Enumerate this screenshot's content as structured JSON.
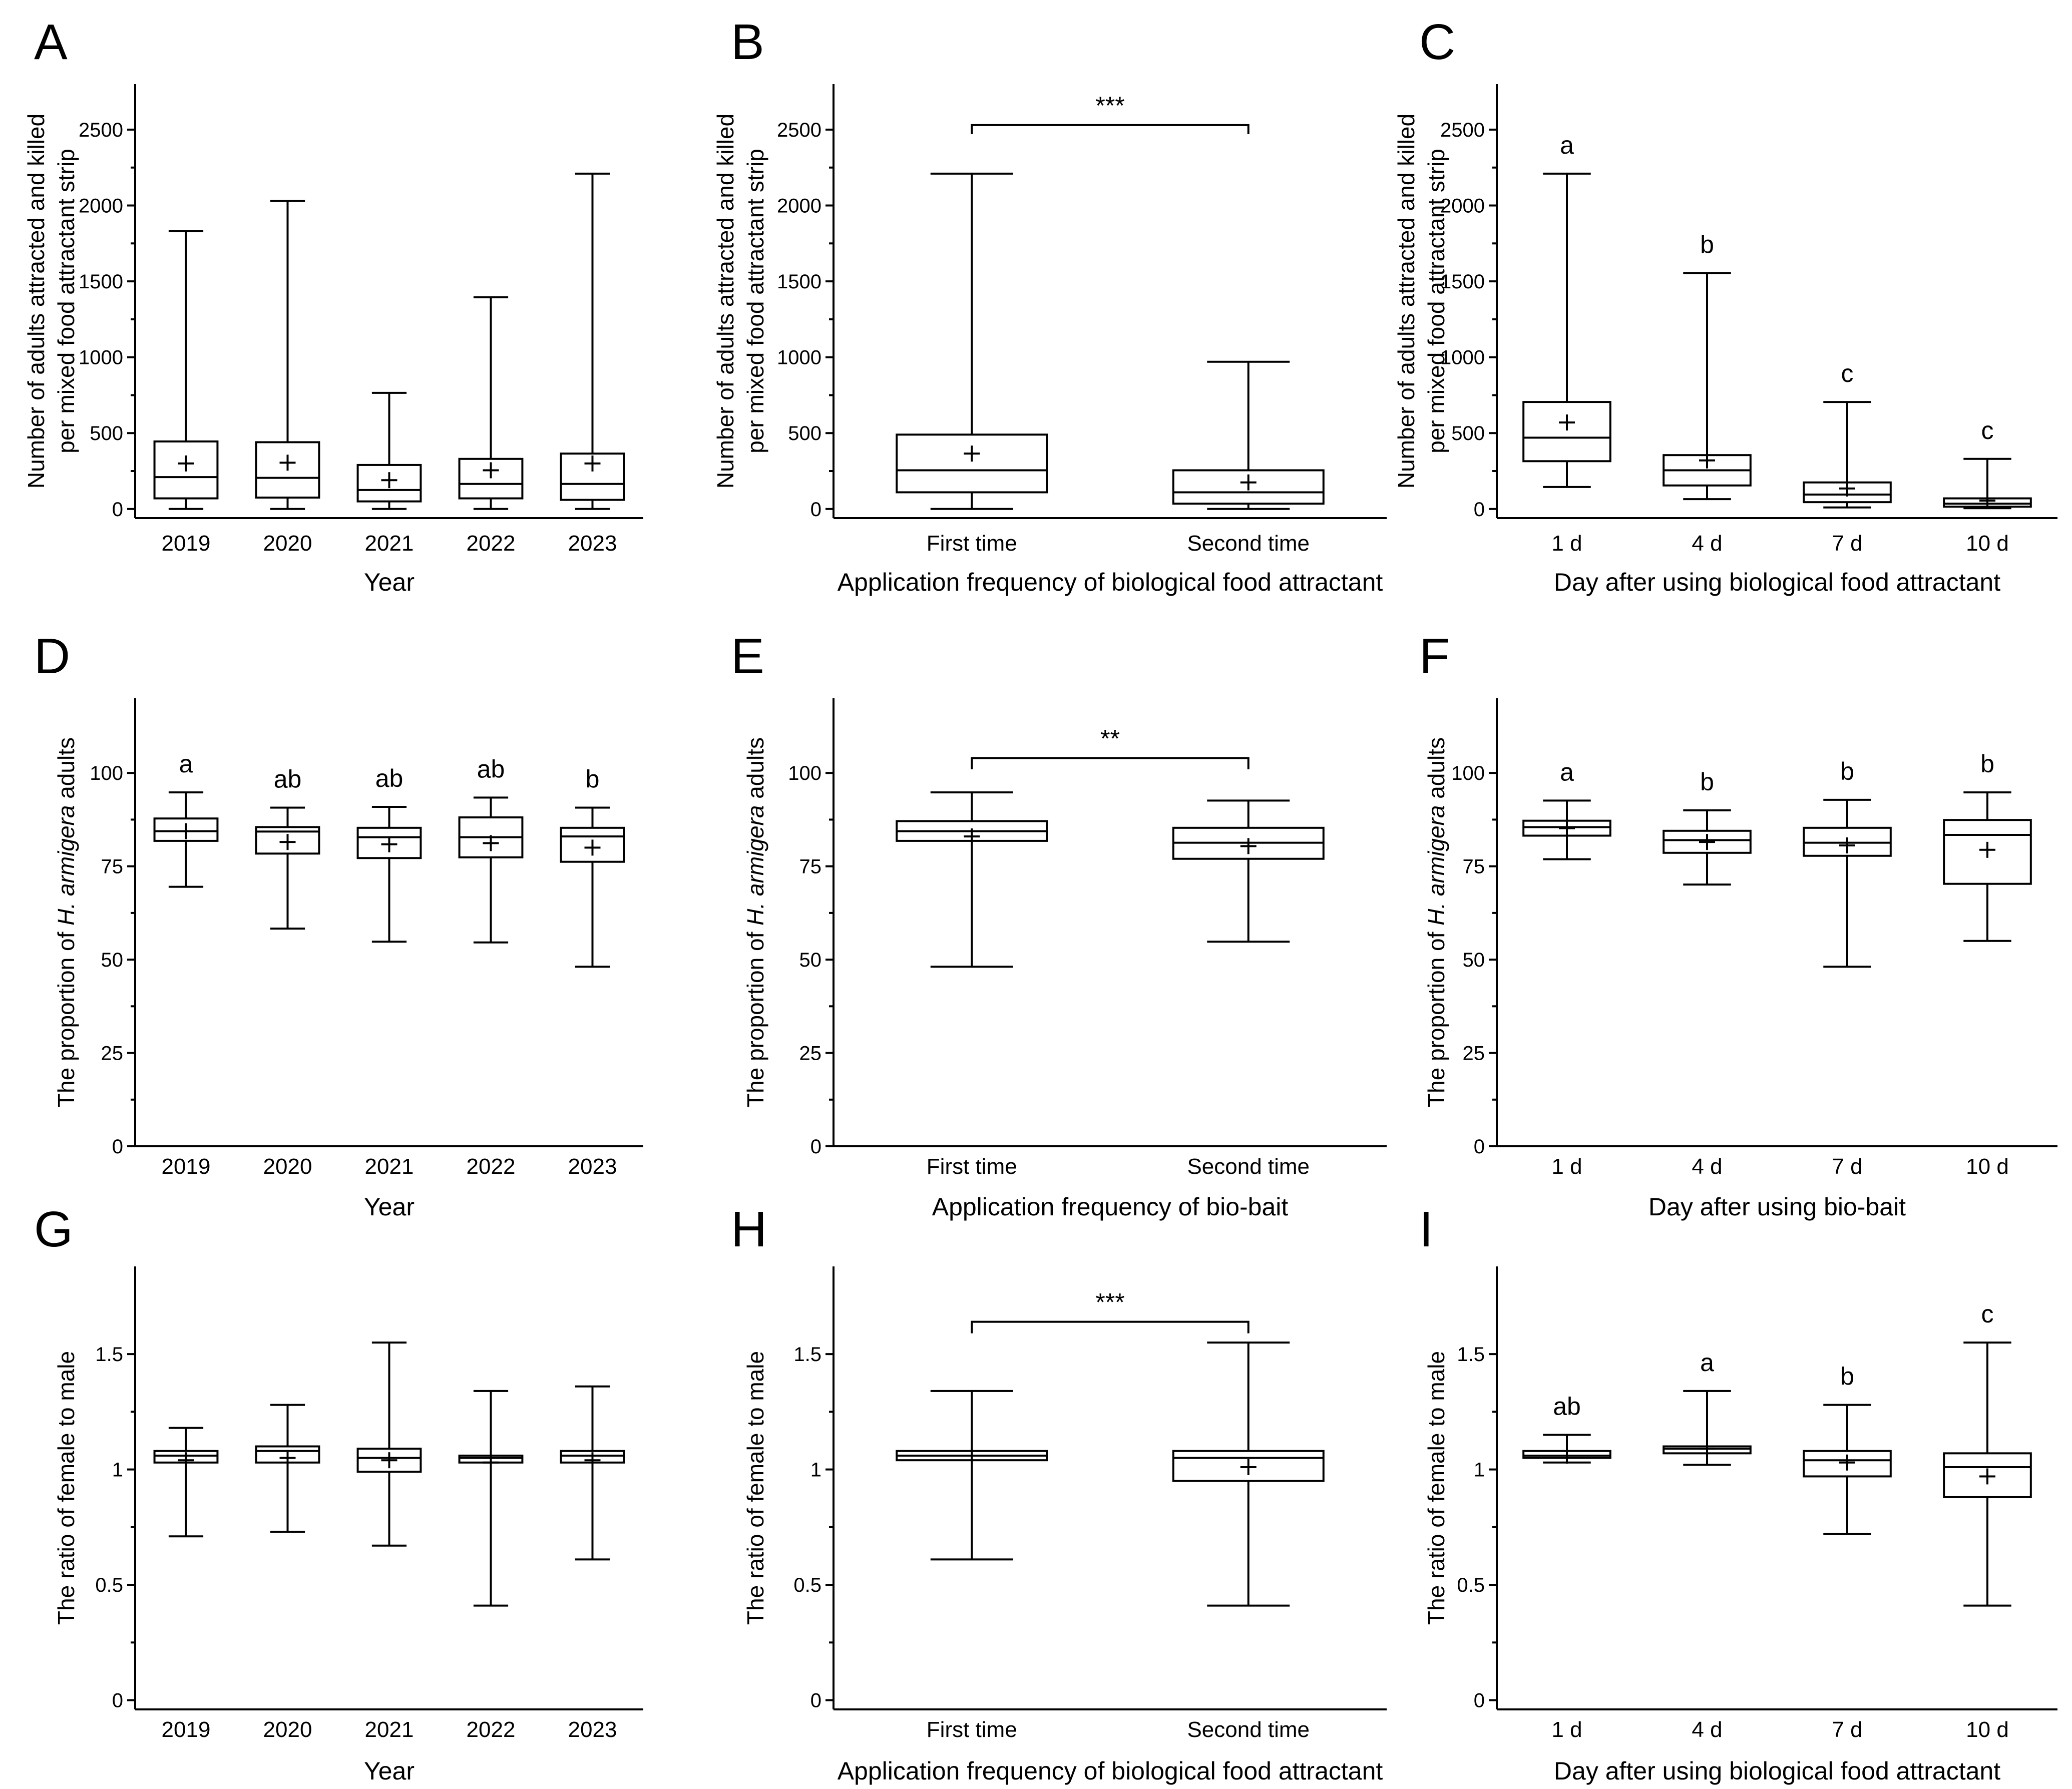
{
  "chart_data": [
    {
      "panel": "A",
      "type": "box",
      "categories": [
        "2019",
        "2020",
        "2021",
        "2022",
        "2023"
      ],
      "xlabel": "Year",
      "ylabel": [
        "Number of adults attracted and killed",
        "per mixed food attractant strip"
      ],
      "ylim": [
        -60,
        2800
      ],
      "yticks": [
        0,
        500,
        1000,
        1500,
        2000,
        2500
      ],
      "boxes": [
        {
          "min": 0,
          "q1": 70,
          "median": 210,
          "q3": 445,
          "max": 1830,
          "mean": 300
        },
        {
          "min": 0,
          "q1": 75,
          "median": 205,
          "q3": 440,
          "max": 2030,
          "mean": 305
        },
        {
          "min": 0,
          "q1": 50,
          "median": 125,
          "q3": 290,
          "max": 765,
          "mean": 190
        },
        {
          "min": 0,
          "q1": 70,
          "median": 165,
          "q3": 330,
          "max": 1395,
          "mean": 255
        },
        {
          "min": 0,
          "q1": 60,
          "median": 165,
          "q3": 365,
          "max": 2210,
          "mean": 300
        }
      ],
      "letters": [],
      "comparison": null
    },
    {
      "panel": "B",
      "type": "box",
      "categories": [
        "First time",
        "Second time"
      ],
      "xlabel": "Application frequency of biological food attractant",
      "ylabel": [
        "Number of adults attracted and killed",
        "per mixed food attractant strip"
      ],
      "ylim": [
        -60,
        2800
      ],
      "yticks": [
        0,
        500,
        1000,
        1500,
        2000,
        2500
      ],
      "boxes": [
        {
          "min": 0,
          "q1": 110,
          "median": 255,
          "q3": 490,
          "max": 2210,
          "mean": 365
        },
        {
          "min": 0,
          "q1": 35,
          "median": 110,
          "q3": 255,
          "max": 970,
          "mean": 175
        }
      ],
      "letters": [],
      "comparison": {
        "label": "***",
        "y": 2530,
        "drop": 60
      }
    },
    {
      "panel": "C",
      "type": "box",
      "categories": [
        "1 d",
        "4 d",
        "7 d",
        "10 d"
      ],
      "xlabel": "Day after using biological food attractant",
      "ylabel": [
        "Number of adults attracted and killed",
        "per mixed food attractant strip"
      ],
      "ylim": [
        -60,
        2800
      ],
      "yticks": [
        0,
        500,
        1000,
        1500,
        2000,
        2500
      ],
      "boxes": [
        {
          "min": 145,
          "q1": 315,
          "median": 470,
          "q3": 705,
          "max": 2210,
          "mean": 570
        },
        {
          "min": 65,
          "q1": 155,
          "median": 255,
          "q3": 355,
          "max": 1555,
          "mean": 320
        },
        {
          "min": 10,
          "q1": 45,
          "median": 95,
          "q3": 175,
          "max": 705,
          "mean": 135
        },
        {
          "min": 5,
          "q1": 15,
          "median": 35,
          "q3": 70,
          "max": 330,
          "mean": 55
        }
      ],
      "letters": [
        "a",
        "b",
        "c",
        "c"
      ],
      "comparison": null
    },
    {
      "panel": "D",
      "type": "box",
      "categories": [
        "2019",
        "2020",
        "2021",
        "2022",
        "2023"
      ],
      "xlabel": "Year",
      "ylabel": [
        "The  proportion of H. armigera adults"
      ],
      "ylim": [
        0,
        120
      ],
      "yticks": [
        0,
        25,
        50,
        75,
        100
      ],
      "boxes": [
        {
          "min": 69.5,
          "q1": 81.8,
          "median": 84.4,
          "q3": 87.8,
          "max": 94.8,
          "mean": 84.4
        },
        {
          "min": 58.3,
          "q1": 78.4,
          "median": 84.3,
          "q3": 85.5,
          "max": 90.7,
          "mean": 81.5
        },
        {
          "min": 54.8,
          "q1": 77.2,
          "median": 82.8,
          "q3": 85.3,
          "max": 90.9,
          "mean": 80.9
        },
        {
          "min": 54.6,
          "q1": 77.4,
          "median": 82.8,
          "q3": 88.1,
          "max": 93.4,
          "mean": 81.2
        },
        {
          "min": 48.1,
          "q1": 76.2,
          "median": 83.0,
          "q3": 85.3,
          "max": 90.7,
          "mean": 80.0
        }
      ],
      "letters": [
        "a",
        "ab",
        "ab",
        "ab",
        "b"
      ],
      "comparison": null
    },
    {
      "panel": "E",
      "type": "box",
      "categories": [
        "First time",
        "Second time"
      ],
      "xlabel": "Application frequency of bio-bait",
      "ylabel": [
        "The  proportion of H. armigera adults"
      ],
      "ylim": [
        0,
        120
      ],
      "yticks": [
        0,
        25,
        50,
        75,
        100
      ],
      "boxes": [
        {
          "min": 48.1,
          "q1": 81.8,
          "median": 84.4,
          "q3": 87.1,
          "max": 94.8,
          "mean": 83.0
        },
        {
          "min": 54.8,
          "q1": 77.0,
          "median": 81.3,
          "q3": 85.3,
          "max": 92.6,
          "mean": 80.4
        }
      ],
      "letters": [],
      "comparison": {
        "label": "**",
        "y": 104,
        "drop": 3
      }
    },
    {
      "panel": "F",
      "type": "box",
      "categories": [
        "1 d",
        "4 d",
        "7 d",
        "10 d"
      ],
      "xlabel": "Day after using bio-bait",
      "ylabel": [
        "The  proportion of H. armigera adults"
      ],
      "ylim": [
        0,
        120
      ],
      "yticks": [
        0,
        25,
        50,
        75,
        100
      ],
      "boxes": [
        {
          "min": 76.9,
          "q1": 83.2,
          "median": 85.5,
          "q3": 87.2,
          "max": 92.6,
          "mean": 85.2
        },
        {
          "min": 70.1,
          "q1": 78.6,
          "median": 82.0,
          "q3": 84.5,
          "max": 90.0,
          "mean": 81.5
        },
        {
          "min": 48.1,
          "q1": 77.8,
          "median": 81.3,
          "q3": 85.3,
          "max": 92.8,
          "mean": 80.6
        },
        {
          "min": 55.0,
          "q1": 70.3,
          "median": 83.4,
          "q3": 87.4,
          "max": 94.8,
          "mean": 79.4
        }
      ],
      "letters": [
        "a",
        "b",
        "b",
        "b"
      ],
      "comparison": null
    },
    {
      "panel": "G",
      "type": "box",
      "categories": [
        "2019",
        "2020",
        "2021",
        "2022",
        "2023"
      ],
      "xlabel": "Year",
      "ylabel": [
        "The ratio of female to male"
      ],
      "ylim": [
        -0.04,
        1.88
      ],
      "yticks": [
        0.0,
        0.5,
        1.0,
        1.5
      ],
      "boxes": [
        {
          "min": 0.71,
          "q1": 1.03,
          "median": 1.06,
          "q3": 1.08,
          "max": 1.18,
          "mean": 1.04
        },
        {
          "min": 0.73,
          "q1": 1.03,
          "median": 1.08,
          "q3": 1.1,
          "max": 1.28,
          "mean": 1.05
        },
        {
          "min": 0.67,
          "q1": 0.99,
          "median": 1.05,
          "q3": 1.09,
          "max": 1.55,
          "mean": 1.04
        },
        {
          "min": 0.41,
          "q1": 1.03,
          "median": 1.05,
          "q3": 1.06,
          "max": 1.34,
          "mean": 1.03
        },
        {
          "min": 0.61,
          "q1": 1.03,
          "median": 1.06,
          "q3": 1.08,
          "max": 1.36,
          "mean": 1.04
        }
      ],
      "letters": [],
      "comparison": null
    },
    {
      "panel": "H",
      "type": "box",
      "categories": [
        "First time",
        "Second time"
      ],
      "xlabel": "Application frequency of biological food attractant",
      "ylabel": [
        "The ratio of female to male"
      ],
      "ylim": [
        -0.04,
        1.88
      ],
      "yticks": [
        0.0,
        0.5,
        1.0,
        1.5
      ],
      "boxes": [
        {
          "min": 0.61,
          "q1": 1.04,
          "median": 1.06,
          "q3": 1.08,
          "max": 1.34,
          "mean": 1.06
        },
        {
          "min": 0.41,
          "q1": 0.95,
          "median": 1.05,
          "q3": 1.08,
          "max": 1.55,
          "mean": 1.01
        }
      ],
      "letters": [],
      "comparison": {
        "label": "***",
        "y": 1.64,
        "drop": 0.05
      }
    },
    {
      "panel": "I",
      "type": "box",
      "categories": [
        "1 d",
        "4 d",
        "7 d",
        "10 d"
      ],
      "xlabel": "Day after using biological food attractant",
      "ylabel": [
        "The ratio of female to male"
      ],
      "ylim": [
        -0.04,
        1.88
      ],
      "yticks": [
        0.0,
        0.5,
        1.0,
        1.5
      ],
      "boxes": [
        {
          "min": 1.03,
          "q1": 1.05,
          "median": 1.06,
          "q3": 1.08,
          "max": 1.15,
          "mean": 1.06
        },
        {
          "min": 1.02,
          "q1": 1.07,
          "median": 1.09,
          "q3": 1.1,
          "max": 1.34,
          "mean": 1.09
        },
        {
          "min": 0.72,
          "q1": 0.97,
          "median": 1.04,
          "q3": 1.08,
          "max": 1.28,
          "mean": 1.03
        },
        {
          "min": 0.41,
          "q1": 0.88,
          "median": 1.01,
          "q3": 1.07,
          "max": 1.55,
          "mean": 0.97
        }
      ],
      "letters": [
        "ab",
        "a",
        "b",
        "c"
      ],
      "comparison": null
    }
  ]
}
